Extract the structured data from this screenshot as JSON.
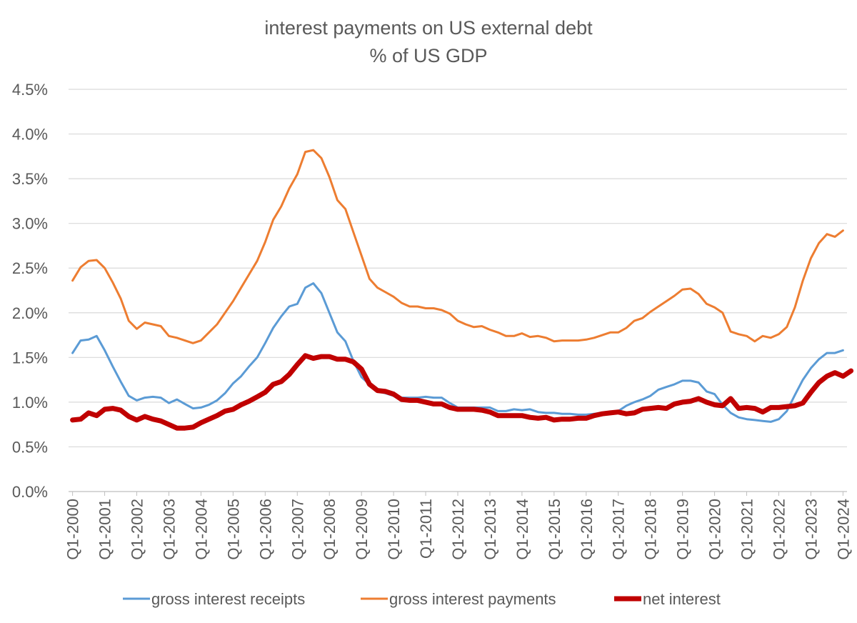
{
  "chart_data": {
    "type": "line",
    "title": "interest payments on US external debt",
    "subtitle": "% of US GDP",
    "xlabel": "",
    "ylabel": "",
    "ylim": [
      0,
      4.5
    ],
    "yticks": [
      "0.0%",
      "0.5%",
      "1.0%",
      "1.5%",
      "2.0%",
      "2.5%",
      "3.0%",
      "3.5%",
      "4.0%",
      "4.5%"
    ],
    "xticks": [
      "Q1-2000",
      "Q1-2001",
      "Q1-2002",
      "Q1-2003",
      "Q1-2004",
      "Q1-2005",
      "Q1-2006",
      "Q1-2007",
      "Q1-2008",
      "Q1-2009",
      "Q1-2010",
      "Q1-2011",
      "Q1-2012",
      "Q1-2013",
      "Q1-2014",
      "Q1-2015",
      "Q1-2016",
      "Q1-2017",
      "Q1-2018",
      "Q1-2019",
      "Q1-2020",
      "Q1-2021",
      "Q1-2022",
      "Q1-2023",
      "Q1-2024"
    ],
    "grid": true,
    "legend_position": "bottom",
    "series": [
      {
        "name": "gross interest receipts",
        "color": "#5B9BD5",
        "values": [
          1.55,
          1.69,
          1.7,
          1.74,
          1.58,
          1.4,
          1.23,
          1.07,
          1.02,
          1.05,
          1.06,
          1.05,
          0.99,
          1.03,
          0.98,
          0.93,
          0.94,
          0.97,
          1.02,
          1.1,
          1.21,
          1.29,
          1.4,
          1.5,
          1.66,
          1.83,
          1.96,
          2.07,
          2.1,
          2.28,
          2.33,
          2.22,
          2.0,
          1.78,
          1.68,
          1.46,
          1.28,
          1.2,
          1.12,
          1.1,
          1.07,
          1.05,
          1.05,
          1.05,
          1.06,
          1.05,
          1.05,
          0.99,
          0.94,
          0.94,
          0.94,
          0.94,
          0.94,
          0.9,
          0.9,
          0.92,
          0.91,
          0.92,
          0.89,
          0.88,
          0.88,
          0.87,
          0.87,
          0.86,
          0.86,
          0.87,
          0.88,
          0.89,
          0.9,
          0.96,
          1.0,
          1.03,
          1.07,
          1.14,
          1.17,
          1.2,
          1.24,
          1.24,
          1.22,
          1.12,
          1.09,
          0.97,
          0.88,
          0.83,
          0.81,
          0.8,
          0.79,
          0.78,
          0.81,
          0.9,
          1.08,
          1.25,
          1.38,
          1.48,
          1.55,
          1.55,
          1.58
        ]
      },
      {
        "name": "gross interest payments",
        "color": "#ED7D31",
        "values": [
          2.36,
          2.51,
          2.58,
          2.59,
          2.5,
          2.34,
          2.16,
          1.91,
          1.82,
          1.89,
          1.87,
          1.85,
          1.74,
          1.72,
          1.69,
          1.66,
          1.69,
          1.78,
          1.87,
          2.0,
          2.13,
          2.28,
          2.43,
          2.58,
          2.79,
          3.04,
          3.19,
          3.39,
          3.55,
          3.8,
          3.82,
          3.73,
          3.52,
          3.26,
          3.16,
          2.9,
          2.64,
          2.38,
          2.28,
          2.23,
          2.18,
          2.11,
          2.07,
          2.07,
          2.05,
          2.05,
          2.03,
          1.99,
          1.91,
          1.87,
          1.84,
          1.85,
          1.81,
          1.78,
          1.74,
          1.74,
          1.77,
          1.73,
          1.74,
          1.72,
          1.68,
          1.69,
          1.69,
          1.69,
          1.7,
          1.72,
          1.75,
          1.78,
          1.78,
          1.83,
          1.91,
          1.94,
          2.01,
          2.07,
          2.13,
          2.19,
          2.26,
          2.27,
          2.21,
          2.1,
          2.06,
          2.0,
          1.79,
          1.76,
          1.74,
          1.68,
          1.74,
          1.72,
          1.76,
          1.84,
          2.06,
          2.36,
          2.61,
          2.78,
          2.88,
          2.85,
          2.92
        ]
      },
      {
        "name": "net interest",
        "color": "#C00000",
        "values": [
          0.8,
          0.81,
          0.88,
          0.85,
          0.92,
          0.93,
          0.91,
          0.84,
          0.8,
          0.84,
          0.81,
          0.79,
          0.75,
          0.71,
          0.71,
          0.72,
          0.77,
          0.81,
          0.85,
          0.9,
          0.92,
          0.97,
          1.01,
          1.06,
          1.11,
          1.2,
          1.23,
          1.31,
          1.42,
          1.52,
          1.49,
          1.51,
          1.51,
          1.48,
          1.48,
          1.45,
          1.37,
          1.2,
          1.13,
          1.12,
          1.09,
          1.03,
          1.02,
          1.02,
          1.0,
          0.98,
          0.98,
          0.94,
          0.92,
          0.92,
          0.92,
          0.91,
          0.89,
          0.85,
          0.85,
          0.85,
          0.85,
          0.83,
          0.82,
          0.83,
          0.8,
          0.81,
          0.81,
          0.82,
          0.82,
          0.85,
          0.87,
          0.88,
          0.89,
          0.87,
          0.88,
          0.92,
          0.93,
          0.94,
          0.93,
          0.98,
          1.0,
          1.01,
          1.04,
          1.0,
          0.97,
          0.96,
          1.04,
          0.93,
          0.94,
          0.93,
          0.89,
          0.94,
          0.94,
          0.95,
          0.96,
          0.99,
          1.11,
          1.22,
          1.29,
          1.33,
          1.29,
          1.35
        ]
      }
    ]
  }
}
